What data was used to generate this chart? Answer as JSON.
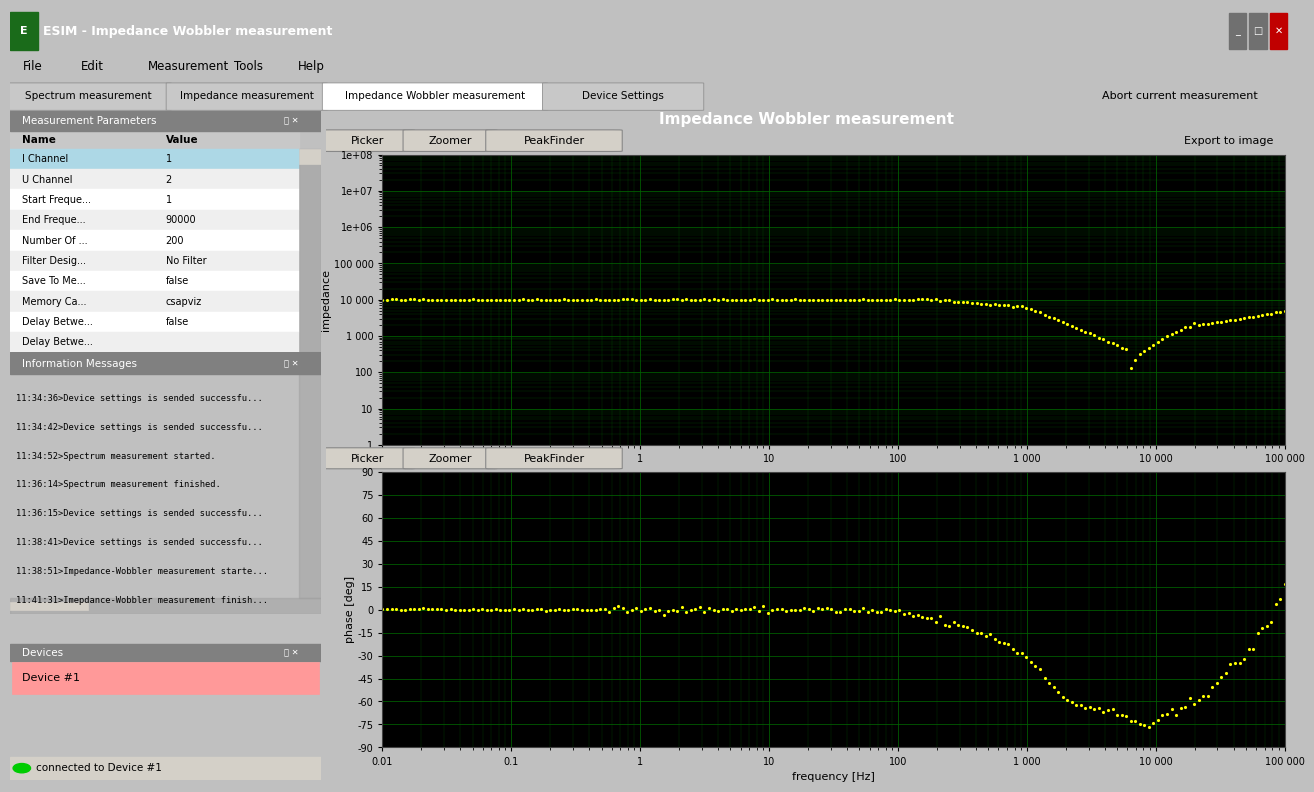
{
  "title_bar": "ESIM - Impedance Wobbler measurement",
  "title_bar_color": "#00008B",
  "title_bar_text_color": "#FFFFFF",
  "menu_items": [
    "File",
    "Edit",
    "Measurement",
    "Tools",
    "Help"
  ],
  "tabs": [
    "Spectrum measurement",
    "Impedance measurement",
    "Impedance Wobbler measurement",
    "Device Settings"
  ],
  "active_tab": "Impedance Wobbler measurement",
  "abort_text": "Abort current measurement",
  "panel_title": "Impedance Wobbler measurement",
  "panel_bg": "#C0C0C0",
  "panel_title_bg": "#808080",
  "panel_title_text": "#FFFFFF",
  "left_panel_title": "Measurement Parameters",
  "params": [
    [
      "Name",
      "Value"
    ],
    [
      "I Channel",
      "1"
    ],
    [
      "U Channel",
      "2"
    ],
    [
      "Start Freque...",
      "1"
    ],
    [
      "End Freque...",
      "90000"
    ],
    [
      "Number Of ...",
      "200"
    ],
    [
      "Filter Desig...",
      "No Filter"
    ],
    [
      "Save To Me...",
      "false"
    ],
    [
      "Memory Ca...",
      "csapviz"
    ],
    [
      "Delay Betwe...",
      "false"
    ],
    [
      "Delay Betwe...",
      ""
    ]
  ],
  "info_title": "Information Messages",
  "info_messages": [
    "11:34:36>Device settings is sended successfu...",
    "11:34:42>Device settings is sended successfu...",
    "11:34:52>Spectrum measurement started.",
    "11:36:14>Spectrum measurement finished.",
    "11:36:15>Device settings is sended successfu...",
    "11:38:41>Device settings is sended successfu...",
    "11:38:51>Impedance-Wobbler measurement starte...",
    "11:41:31>Imepdance-Wobbler measurement finish..."
  ],
  "devices_title": "Devices",
  "device_name": "Device #1",
  "device_bg": "#FF9999",
  "status_text": "connected to Device #1",
  "plot_bg": "#000000",
  "grid_color": "#006400",
  "data_color": "#FFFF00",
  "toolbar_bg": "#D4D0C8",
  "toolbar_buttons": [
    "Picker",
    "Zoomer",
    "PeakFinder"
  ],
  "export_text": "Export to image",
  "imp_ylabel": "impedance",
  "phase_ylabel": "phase [deg]",
  "freq_xlabel": "frequency [Hz]",
  "imp_ylim": [
    1,
    100000000.0
  ],
  "phase_ylim": [
    -90,
    90
  ],
  "freq_xlim": [
    0.01,
    100000
  ],
  "imp_yticks": [
    1,
    10,
    100,
    1000,
    10000,
    100000,
    1000000,
    10000000,
    100000000
  ],
  "imp_ytick_labels": [
    "1",
    "10",
    "100",
    "1 000",
    "10 000",
    "100 000",
    "1e+06",
    "1e+07",
    "1e+08"
  ],
  "phase_yticks": [
    -90,
    -75,
    -60,
    -45,
    -30,
    -15,
    0,
    15,
    30,
    45,
    60,
    75,
    90
  ],
  "freq_xticks": [
    0.01,
    0.1,
    1,
    10,
    100,
    1000,
    10000,
    100000
  ],
  "freq_xtick_labels": [
    "0.01",
    "0.1",
    "1",
    "10",
    "100",
    "1 000",
    "10 000",
    "100 000"
  ]
}
